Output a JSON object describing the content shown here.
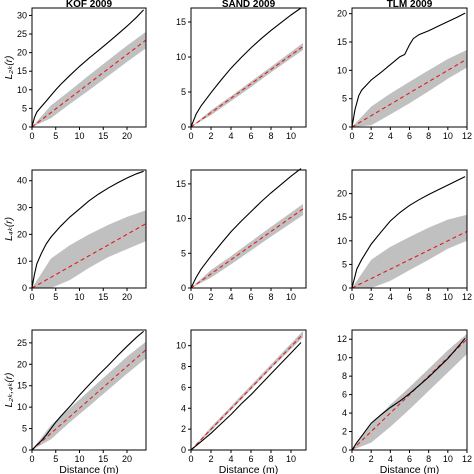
{
  "chart_data": [
    {
      "type": "line",
      "title": "KOF 2009",
      "ylabel": "L₂ₖ(r)",
      "xlabel": "",
      "xlim": [
        0,
        24
      ],
      "ylim": [
        0,
        32
      ],
      "xticks": [
        "0",
        "5",
        "10",
        "15",
        "20"
      ],
      "yticks": [
        "0",
        "5",
        "10",
        "15",
        "20",
        "25",
        "30"
      ],
      "series": [
        {
          "kind": "observed",
          "x": [
            0,
            0.5,
            1,
            2,
            3,
            4,
            5,
            6,
            8,
            10,
            12,
            14,
            16,
            18,
            20,
            22,
            23.5
          ],
          "y": [
            0,
            2.5,
            4,
            5.5,
            7,
            8.5,
            10,
            11.4,
            13.9,
            16.3,
            18.5,
            20.6,
            22.7,
            24.9,
            27.1,
            29.5,
            31.5
          ]
        },
        {
          "kind": "expected",
          "x": [
            0,
            24
          ],
          "y": [
            0,
            23.4
          ]
        },
        {
          "kind": "envelope",
          "x": [
            0,
            4,
            8,
            12,
            16,
            20,
            24
          ],
          "lower": [
            0,
            2.4,
            6.2,
            9.9,
            13.7,
            17.5,
            21.2
          ],
          "upper": [
            0,
            5.8,
            9.8,
            13.9,
            17.9,
            21.9,
            25.6
          ]
        }
      ]
    },
    {
      "type": "line",
      "title": "SAND 2009",
      "ylabel": "",
      "xlabel": "",
      "xlim": [
        0,
        11.5
      ],
      "ylim": [
        0,
        17
      ],
      "xticks": [
        "0",
        "2",
        "4",
        "6",
        "8",
        "10"
      ],
      "yticks": [
        "0",
        "5",
        "10",
        "15"
      ],
      "series": [
        {
          "kind": "observed",
          "x": [
            0,
            0.5,
            1,
            2,
            3,
            4,
            5,
            6,
            7,
            8,
            9,
            10,
            11
          ],
          "y": [
            0,
            1.8,
            3,
            4.9,
            6.7,
            8.4,
            9.9,
            11.3,
            12.6,
            13.8,
            14.9,
            16,
            17
          ]
        },
        {
          "kind": "expected",
          "x": [
            0,
            11.2
          ],
          "y": [
            0,
            11.5
          ]
        },
        {
          "kind": "envelope",
          "x": [
            0,
            2,
            4,
            6,
            8,
            11.2
          ],
          "lower": [
            0,
            1.7,
            3.7,
            5.7,
            7.8,
            11.0
          ],
          "upper": [
            0,
            2.4,
            4.4,
            6.5,
            8.6,
            12.0
          ]
        }
      ]
    },
    {
      "type": "line",
      "title": "TLM 2009",
      "ylabel": "",
      "xlabel": "",
      "xlim": [
        0,
        12
      ],
      "ylim": [
        0,
        21
      ],
      "xticks": [
        "0",
        "2",
        "4",
        "6",
        "8",
        "10",
        "12"
      ],
      "yticks": [
        "0",
        "5",
        "10",
        "15",
        "20"
      ],
      "series": [
        {
          "kind": "observed",
          "x": [
            0,
            0.3,
            0.7,
            1,
            2,
            3,
            4,
            5,
            5.5,
            6,
            6.4,
            7,
            8,
            9,
            10,
            11,
            11.8
          ],
          "y": [
            0,
            3,
            5.5,
            6.5,
            8.3,
            9.6,
            11,
            12.4,
            12.8,
            14.5,
            15.6,
            16.3,
            17,
            17.8,
            18.6,
            19.4,
            20.1
          ]
        },
        {
          "kind": "expected",
          "x": [
            0,
            12
          ],
          "y": [
            0,
            12
          ]
        },
        {
          "kind": "envelope",
          "x": [
            0,
            2,
            4,
            6,
            8,
            10,
            12
          ],
          "lower": [
            0,
            0.3,
            2.2,
            4.2,
            6.3,
            8.5,
            10.5
          ],
          "upper": [
            0,
            3.6,
            5.9,
            8.0,
            10,
            12,
            13.6
          ]
        }
      ]
    },
    {
      "type": "line",
      "title": "",
      "ylabel": "L₄ₖ(r)",
      "xlabel": "",
      "xlim": [
        0,
        24
      ],
      "ylim": [
        0,
        44
      ],
      "xticks": [
        "0",
        "5",
        "10",
        "15",
        "20"
      ],
      "yticks": [
        "0",
        "10",
        "20",
        "30",
        "40"
      ],
      "series": [
        {
          "kind": "observed",
          "x": [
            0,
            0.5,
            1,
            2,
            3,
            4,
            6,
            8,
            10,
            12,
            14,
            16,
            18,
            20,
            22,
            23.5
          ],
          "y": [
            0,
            5,
            9,
            13,
            16.5,
            19,
            23,
            26.5,
            29.5,
            32.5,
            35,
            37.2,
            39.2,
            41,
            42.6,
            43.5
          ]
        },
        {
          "kind": "expected",
          "x": [
            0,
            24
          ],
          "y": [
            0,
            24
          ]
        },
        {
          "kind": "envelope",
          "x": [
            0,
            4,
            8,
            12,
            16,
            20,
            24
          ],
          "lower": [
            0,
            0,
            3,
            7.5,
            11.5,
            14.5,
            17.5
          ],
          "upper": [
            0,
            11,
            16,
            20,
            23.5,
            26.5,
            29
          ]
        }
      ]
    },
    {
      "type": "line",
      "title": "",
      "ylabel": "",
      "xlabel": "",
      "xlim": [
        0,
        11.5
      ],
      "ylim": [
        0,
        17
      ],
      "xticks": [
        "0",
        "2",
        "4",
        "6",
        "8",
        "10"
      ],
      "yticks": [
        "0",
        "5",
        "10",
        "15"
      ],
      "series": [
        {
          "kind": "observed",
          "x": [
            0,
            0.5,
            1,
            2,
            3,
            4,
            5,
            6,
            7,
            8,
            9,
            10,
            11
          ],
          "y": [
            0,
            1.5,
            2.7,
            4.6,
            6.4,
            8.1,
            9.6,
            11,
            12.4,
            13.7,
            14.9,
            16.1,
            17.2
          ]
        },
        {
          "kind": "expected",
          "x": [
            0,
            11.2
          ],
          "y": [
            0,
            11.4
          ]
        },
        {
          "kind": "envelope",
          "x": [
            0,
            2,
            4,
            6,
            8,
            11.2
          ],
          "lower": [
            0,
            1.5,
            3.4,
            5.4,
            7.4,
            10.5
          ],
          "upper": [
            0,
            2.6,
            4.6,
            6.7,
            8.8,
            12.1
          ]
        }
      ]
    },
    {
      "type": "line",
      "title": "",
      "ylabel": "",
      "xlabel": "",
      "xlim": [
        0,
        12
      ],
      "ylim": [
        0,
        25
      ],
      "xticks": [
        "0",
        "2",
        "4",
        "6",
        "8",
        "10",
        "12"
      ],
      "yticks": [
        "0",
        "5",
        "10",
        "15",
        "20"
      ],
      "series": [
        {
          "kind": "observed",
          "x": [
            0,
            0.5,
            1,
            2,
            3,
            4,
            5,
            6,
            7,
            8,
            9,
            10,
            11,
            11.8
          ],
          "y": [
            0,
            4,
            6,
            9.3,
            11.8,
            14.2,
            16,
            17.5,
            18.7,
            19.8,
            20.8,
            21.8,
            22.8,
            23.6
          ]
        },
        {
          "kind": "expected",
          "x": [
            0,
            12
          ],
          "y": [
            0,
            12
          ]
        },
        {
          "kind": "envelope",
          "x": [
            0,
            2,
            4,
            6,
            8,
            10,
            12
          ],
          "lower": [
            0,
            0,
            1.5,
            3.8,
            6,
            8.3,
            10
          ],
          "upper": [
            0,
            6,
            8.7,
            10.8,
            12.8,
            14.5,
            15.5
          ]
        }
      ]
    },
    {
      "type": "line",
      "title": "",
      "ylabel": "L₂ₖ,₄ₖ(r)",
      "xlabel": "Distance (m)",
      "xlim": [
        0,
        24
      ],
      "ylim": [
        0,
        28
      ],
      "xticks": [
        "0",
        "5",
        "10",
        "15",
        "20"
      ],
      "yticks": [
        "0",
        "5",
        "10",
        "15",
        "20",
        "25"
      ],
      "series": [
        {
          "kind": "observed",
          "x": [
            0,
            1,
            2,
            3,
            4,
            5,
            6,
            8,
            10,
            12,
            14,
            16,
            18,
            20,
            22,
            23.5
          ],
          "y": [
            0,
            1.2,
            2.2,
            3.5,
            5,
            6.5,
            7.8,
            10.2,
            12.8,
            15.2,
            17.5,
            19.7,
            22,
            24.2,
            26.3,
            27.7
          ]
        },
        {
          "kind": "expected",
          "x": [
            0,
            24
          ],
          "y": [
            0,
            23.4
          ]
        },
        {
          "kind": "envelope",
          "x": [
            0,
            4,
            8,
            12,
            16,
            20,
            24
          ],
          "lower": [
            0,
            2.5,
            6.5,
            10.2,
            14,
            17.8,
            21.4
          ],
          "upper": [
            0,
            5.8,
            9.8,
            13.8,
            17.8,
            21.8,
            25.3
          ]
        }
      ]
    },
    {
      "type": "line",
      "title": "",
      "ylabel": "",
      "xlabel": "Distance (m)",
      "xlim": [
        0,
        11.5
      ],
      "ylim": [
        0,
        11.5
      ],
      "xticks": [
        "0",
        "2",
        "4",
        "6",
        "8",
        "10"
      ],
      "yticks": [
        "0",
        "2",
        "4",
        "6",
        "8",
        "10"
      ],
      "series": [
        {
          "kind": "observed",
          "x": [
            0,
            0.5,
            1,
            2,
            3,
            4,
            5,
            6,
            7,
            8,
            9,
            10,
            11
          ],
          "y": [
            0,
            0.4,
            0.8,
            1.6,
            2.5,
            3.4,
            4.4,
            5.3,
            6.3,
            7.3,
            8.3,
            9.3,
            10.3
          ]
        },
        {
          "kind": "expected",
          "x": [
            0,
            11.2
          ],
          "y": [
            0,
            11.1
          ]
        },
        {
          "kind": "envelope",
          "x": [
            0,
            2,
            4,
            6,
            8,
            11.2
          ],
          "lower": [
            0,
            1.8,
            3.8,
            5.8,
            7.8,
            10.8
          ],
          "upper": [
            0,
            2.2,
            4.2,
            6.2,
            8.2,
            11.4
          ]
        }
      ]
    },
    {
      "type": "line",
      "title": "",
      "ylabel": "",
      "xlabel": "Distance (m)",
      "xlim": [
        0,
        12
      ],
      "ylim": [
        0,
        13
      ],
      "xticks": [
        "0",
        "2",
        "4",
        "6",
        "8",
        "10",
        "12"
      ],
      "yticks": [
        "0",
        "2",
        "4",
        "6",
        "8",
        "10",
        "12"
      ],
      "series": [
        {
          "kind": "observed",
          "x": [
            0,
            0.5,
            1,
            2,
            3,
            4,
            5,
            6,
            7,
            8,
            9,
            10,
            11,
            11.8
          ],
          "y": [
            0,
            0.8,
            1.5,
            2.9,
            3.8,
            4.6,
            5.3,
            6.1,
            7,
            7.9,
            8.9,
            9.9,
            11.1,
            12.1
          ]
        },
        {
          "kind": "expected",
          "x": [
            0,
            12
          ],
          "y": [
            0,
            12
          ]
        },
        {
          "kind": "envelope",
          "x": [
            0,
            2,
            4,
            6,
            8,
            10,
            12
          ],
          "lower": [
            0,
            0.8,
            2.5,
            4.4,
            6.4,
            8.4,
            10.4
          ],
          "upper": [
            0,
            2.8,
            4.9,
            6.8,
            8.8,
            10.8,
            12.6
          ]
        }
      ]
    }
  ],
  "colors": {
    "observed": "#000000",
    "expected": "#e41a1c",
    "envelope": "#c0c0c0",
    "axis": "#000000"
  }
}
